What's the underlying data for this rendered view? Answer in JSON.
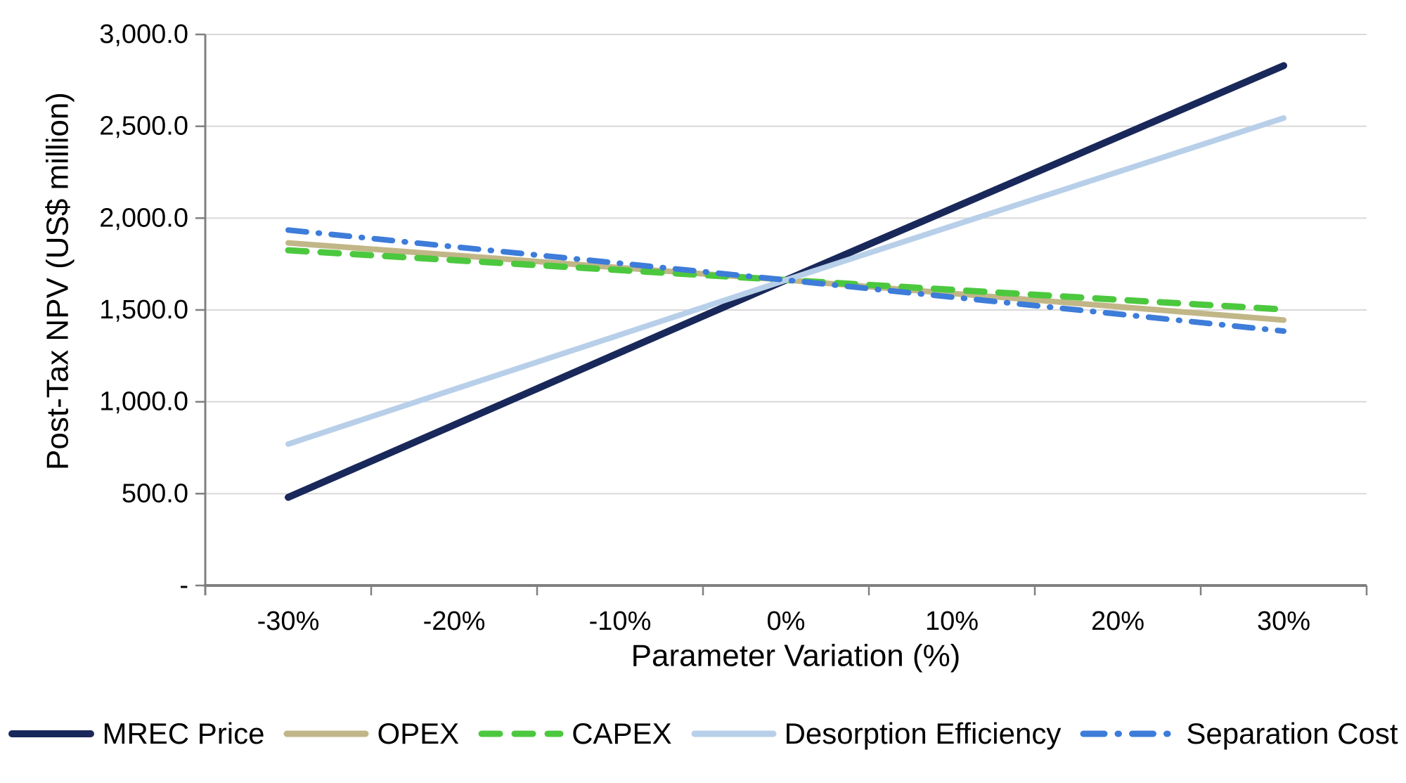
{
  "chart_data": {
    "type": "line",
    "title": "",
    "xlabel": "Parameter Variation (%)",
    "ylabel": "Post-Tax NPV (US$ million)",
    "x_categories": [
      "-30%",
      "-20%",
      "-10%",
      "0%",
      "10%",
      "20%",
      "30%"
    ],
    "ylim": [
      0,
      3000
    ],
    "grid": "horizontal",
    "legend_position": "bottom",
    "y_ticks": [
      {
        "value": 0,
        "label": "-"
      },
      {
        "value": 500,
        "label": "500.0"
      },
      {
        "value": 1000,
        "label": "1,000.0"
      },
      {
        "value": 1500,
        "label": "1,500.0"
      },
      {
        "value": 2000,
        "label": "2,000.0"
      },
      {
        "value": 2500,
        "label": "2,500.0"
      },
      {
        "value": 3000,
        "label": "3,000.0"
      }
    ],
    "series": [
      {
        "name": "MREC Price",
        "color": "#19285a",
        "style": "solid",
        "width": 10,
        "values": [
          480,
          874,
          1269,
          1663,
          2052,
          2441,
          2830
        ]
      },
      {
        "name": "OPEX",
        "color": "#c1b687",
        "style": "solid",
        "width": 8,
        "values": [
          1865,
          1798,
          1730,
          1663,
          1590,
          1518,
          1445
        ]
      },
      {
        "name": "CAPEX",
        "color": "#4cc83e",
        "style": "dashed",
        "width": 9,
        "values": [
          1825,
          1771,
          1717,
          1663,
          1610,
          1556,
          1503
        ]
      },
      {
        "name": "Desorption Efficiency",
        "color": "#b8cfe9",
        "style": "solid",
        "width": 8,
        "values": [
          770,
          1068,
          1365,
          1663,
          1957,
          2251,
          2545
        ]
      },
      {
        "name": "Separation Cost",
        "color": "#3d7cd9",
        "style": "dash-dot",
        "width": 8,
        "values": [
          1935,
          1844,
          1754,
          1663,
          1570,
          1478,
          1385
        ]
      }
    ],
    "colors": {
      "gridline": "#d9d9d9",
      "axis": "#808080",
      "text": "#000000",
      "background": "#ffffff"
    }
  }
}
